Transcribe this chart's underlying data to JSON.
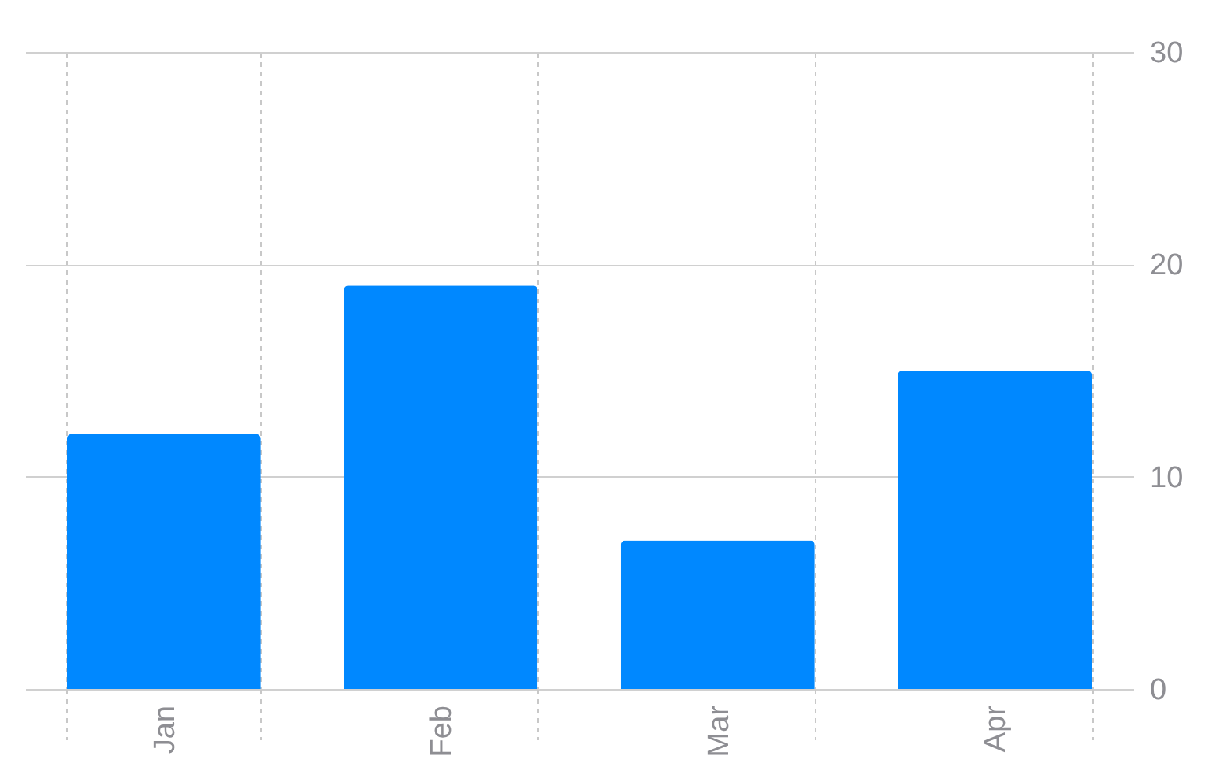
{
  "chart_data": {
    "type": "bar",
    "categories": [
      "Jan",
      "Feb",
      "Mar",
      "Apr"
    ],
    "values": [
      12,
      19,
      7,
      15
    ],
    "color": "#0088ff",
    "ylim": [
      0,
      30
    ],
    "yticks": [
      0,
      10,
      20,
      30
    ],
    "grid": true
  }
}
